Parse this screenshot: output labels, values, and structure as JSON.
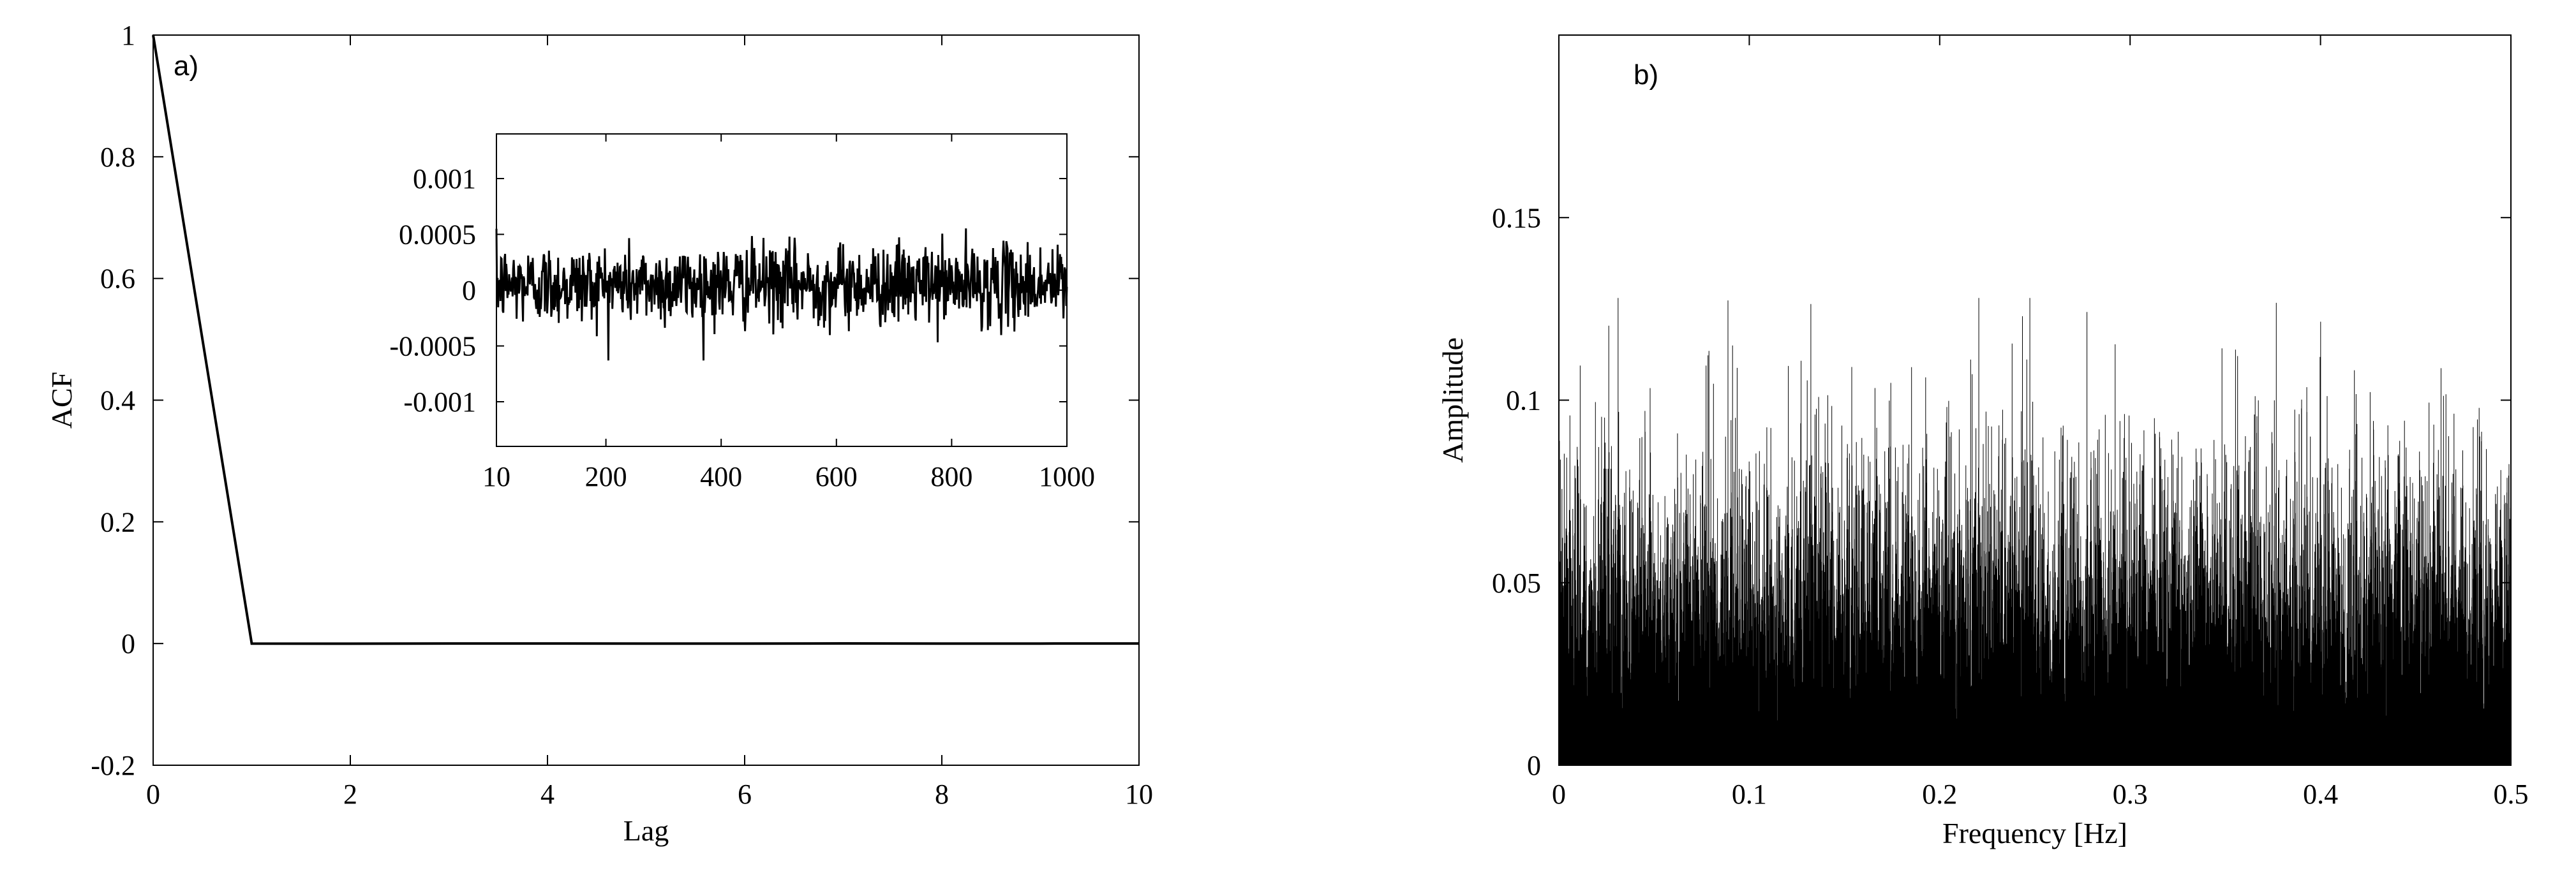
{
  "chart_data": [
    {
      "type": "line",
      "panel_label": "a)",
      "xlabel": "Lag",
      "ylabel": "ACF",
      "xlim": [
        0,
        10
      ],
      "ylim": [
        -0.2,
        1
      ],
      "x_ticks": [
        0,
        2,
        4,
        6,
        8,
        10
      ],
      "x_tick_labels": [
        "0",
        "2",
        "4",
        "6",
        "8",
        "10"
      ],
      "y_ticks": [
        -0.2,
        0,
        0.2,
        0.4,
        0.6,
        0.8,
        1
      ],
      "y_tick_labels": [
        "-0.2",
        "0",
        "0.2",
        "0.4",
        "0.6",
        "0.8",
        "1"
      ],
      "grid": false,
      "series": [
        {
          "x": [
            0,
            1,
            2,
            3,
            4,
            5,
            6,
            7,
            8,
            9,
            10
          ],
          "y": [
            1,
            0,
            -0.0002,
            0.0001,
            0.0001,
            -0.0001,
            0,
            0.0002,
            -0.0001,
            0,
            0.0001
          ]
        }
      ],
      "inset": {
        "type": "line",
        "xlim": [
          10,
          1000
        ],
        "ylim": [
          -0.0014,
          0.0014
        ],
        "x_ticks": [
          10,
          200,
          400,
          600,
          800,
          1000
        ],
        "x_tick_labels": [
          "10",
          "200",
          "400",
          "600",
          "800",
          "1000"
        ],
        "y_ticks": [
          0.001,
          0.0005,
          0,
          -0.0005,
          -0.001
        ],
        "y_tick_labels": [
          "0.001",
          "0.0005",
          "0",
          "-0.0005",
          "-0.001"
        ],
        "noise": {
          "x_start": 10,
          "x_end": 1000,
          "count": 990,
          "mean": 5e-05,
          "std": 0.00018,
          "peak": 0.00063
        }
      }
    },
    {
      "type": "line",
      "panel_label": "b)",
      "xlabel": "Frequency [Hz]",
      "ylabel": "Amplitude",
      "xlim": [
        0,
        0.5
      ],
      "ylim": [
        0,
        0.2
      ],
      "x_ticks": [
        0,
        0.1,
        0.2,
        0.3,
        0.4,
        0.5
      ],
      "x_tick_labels": [
        "0",
        "0.1",
        "0.2",
        "0.3",
        "0.4",
        "0.5"
      ],
      "y_ticks": [
        0,
        0.05,
        0.1,
        0.15
      ],
      "y_tick_labels": [
        "0",
        "0.05",
        "0.1",
        "0.15"
      ],
      "grid": false,
      "spectrum": {
        "f_start": 0,
        "f_end": 0.5,
        "count": 5000,
        "mean": 0.042,
        "max": 0.128
      }
    }
  ]
}
